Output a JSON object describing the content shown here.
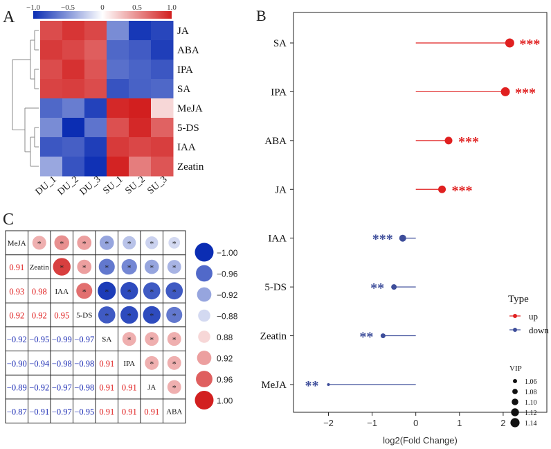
{
  "chart_data": [
    {
      "panel": "A",
      "type": "heatmap",
      "title": "",
      "colorbar": {
        "ticks": [
          -1.0,
          -0.5,
          0,
          0.5,
          1.0
        ],
        "tick_labels": [
          "−1.0",
          "−0.5",
          "0",
          "0.5",
          "1.0"
        ],
        "low": "#0b2db3",
        "mid": "#ffffff",
        "high": "#d21f1f"
      },
      "rows": [
        "JA",
        "ABA",
        "IPA",
        "SA",
        "MeJA",
        "5-DS",
        "IAA",
        "Zeatin"
      ],
      "cols": [
        "DU_1",
        "DU_2",
        "DU_3",
        "SU_1",
        "SU_2",
        "SU_3"
      ],
      "values": [
        [
          0.8,
          0.9,
          0.82,
          -0.55,
          -0.95,
          -0.88
        ],
        [
          0.88,
          0.82,
          0.72,
          -0.72,
          -0.78,
          -0.92
        ],
        [
          0.8,
          0.92,
          0.76,
          -0.68,
          -0.74,
          -0.8
        ],
        [
          0.84,
          0.86,
          0.8,
          -0.82,
          -0.75,
          -0.72
        ],
        [
          -0.72,
          -0.62,
          -0.9,
          0.96,
          1.0,
          0.18
        ],
        [
          -0.55,
          -1.0,
          -0.66,
          0.78,
          0.96,
          0.7
        ],
        [
          -0.8,
          -0.76,
          -0.92,
          0.88,
          0.82,
          0.86
        ],
        [
          -0.42,
          -0.82,
          -0.98,
          0.98,
          0.58,
          0.76
        ]
      ]
    },
    {
      "panel": "B",
      "type": "scatter",
      "subtype": "lollipop",
      "title": "",
      "xlabel": "log2(Fold Change)",
      "ylabel": "",
      "xlim": [
        -2.8,
        3.0
      ],
      "xticks": [
        -2,
        -1,
        0,
        1,
        2
      ],
      "categories": [
        "SA",
        "IPA",
        "ABA",
        "JA",
        "IAA",
        "5-DS",
        "Zeatin",
        "MeJA"
      ],
      "fold_change": [
        2.15,
        2.05,
        0.75,
        0.6,
        -0.3,
        -0.5,
        -0.75,
        -2.0
      ],
      "vip": [
        1.14,
        1.14,
        1.12,
        1.12,
        1.11,
        1.09,
        1.08,
        1.05
      ],
      "type_of": [
        "up",
        "up",
        "up",
        "up",
        "down",
        "down",
        "down",
        "down"
      ],
      "significance": [
        "***",
        "***",
        "***",
        "***",
        "***",
        "**",
        "**",
        "**"
      ],
      "legend": {
        "title": "Type",
        "entries": [
          {
            "label": "up",
            "color": "#e02020"
          },
          {
            "label": "down",
            "color": "#3d4d9a"
          }
        ],
        "size_title": "VIP",
        "size_entries": [
          "1.06",
          "1.08",
          "1.10",
          "1.12",
          "1.14"
        ]
      },
      "colors": {
        "up": "#e02020",
        "down": "#3d4d9a"
      }
    },
    {
      "panel": "C",
      "type": "heatmap",
      "subtype": "correlation-matrix",
      "title": "",
      "variables": [
        "MeJA",
        "Zeatin",
        "IAA",
        "5-DS",
        "SA",
        "IPA",
        "JA",
        "ABA"
      ],
      "lower_labels": [
        [
          null,
          null,
          null,
          null,
          null,
          null,
          null,
          null
        ],
        [
          "0.91",
          null,
          null,
          null,
          null,
          null,
          null,
          null
        ],
        [
          "0.93",
          "0.98",
          null,
          null,
          null,
          null,
          null,
          null
        ],
        [
          "0.92",
          "0.92",
          "0.95",
          null,
          null,
          null,
          null,
          null
        ],
        [
          "−0.92",
          "−0.95",
          "−0.99",
          "−0.97",
          null,
          null,
          null,
          null
        ],
        [
          "−0.90",
          "−0.94",
          "−0.98",
          "−0.98",
          "0.91",
          null,
          null,
          null
        ],
        [
          "−0.89",
          "−0.92",
          "−0.97",
          "−0.98",
          "0.91",
          "0.91",
          null,
          null
        ],
        [
          "−0.87",
          "−0.91",
          "−0.97",
          "−0.95",
          "0.91",
          "0.91",
          "0.91",
          null
        ]
      ],
      "diagonal_self": 1.0,
      "matrix": [
        [
          1.0,
          0.91,
          0.93,
          0.92,
          -0.92,
          -0.9,
          -0.89,
          -0.87
        ],
        [
          0.91,
          1.0,
          0.98,
          0.92,
          -0.95,
          -0.94,
          -0.92,
          -0.91
        ],
        [
          0.93,
          0.98,
          1.0,
          0.95,
          -0.99,
          -0.98,
          -0.97,
          -0.97
        ],
        [
          0.92,
          0.92,
          0.95,
          1.0,
          -0.97,
          -0.98,
          -0.98,
          -0.95
        ],
        [
          -0.92,
          -0.95,
          -0.99,
          -0.97,
          1.0,
          0.91,
          0.91,
          0.91
        ],
        [
          -0.9,
          -0.94,
          -0.98,
          -0.98,
          0.91,
          1.0,
          0.91,
          0.91
        ],
        [
          -0.89,
          -0.92,
          -0.97,
          -0.98,
          0.91,
          0.91,
          1.0,
          0.91
        ],
        [
          -0.87,
          -0.91,
          -0.97,
          -0.95,
          0.91,
          0.91,
          0.91,
          1.0
        ]
      ],
      "significance_mark": "*",
      "legend_values": [
        -1.0,
        -0.96,
        -0.92,
        -0.88,
        0.88,
        0.92,
        0.96,
        1.0
      ],
      "legend_labels": [
        "−1.00",
        "−0.96",
        "−0.92",
        "−0.88",
        "0.88",
        "0.92",
        "0.96",
        "1.00"
      ],
      "colors": {
        "positive_text": "#e02020",
        "negative_text": "#1f2fb5"
      }
    }
  ],
  "panel_labels": {
    "a": "A",
    "b": "B",
    "c": "C"
  }
}
